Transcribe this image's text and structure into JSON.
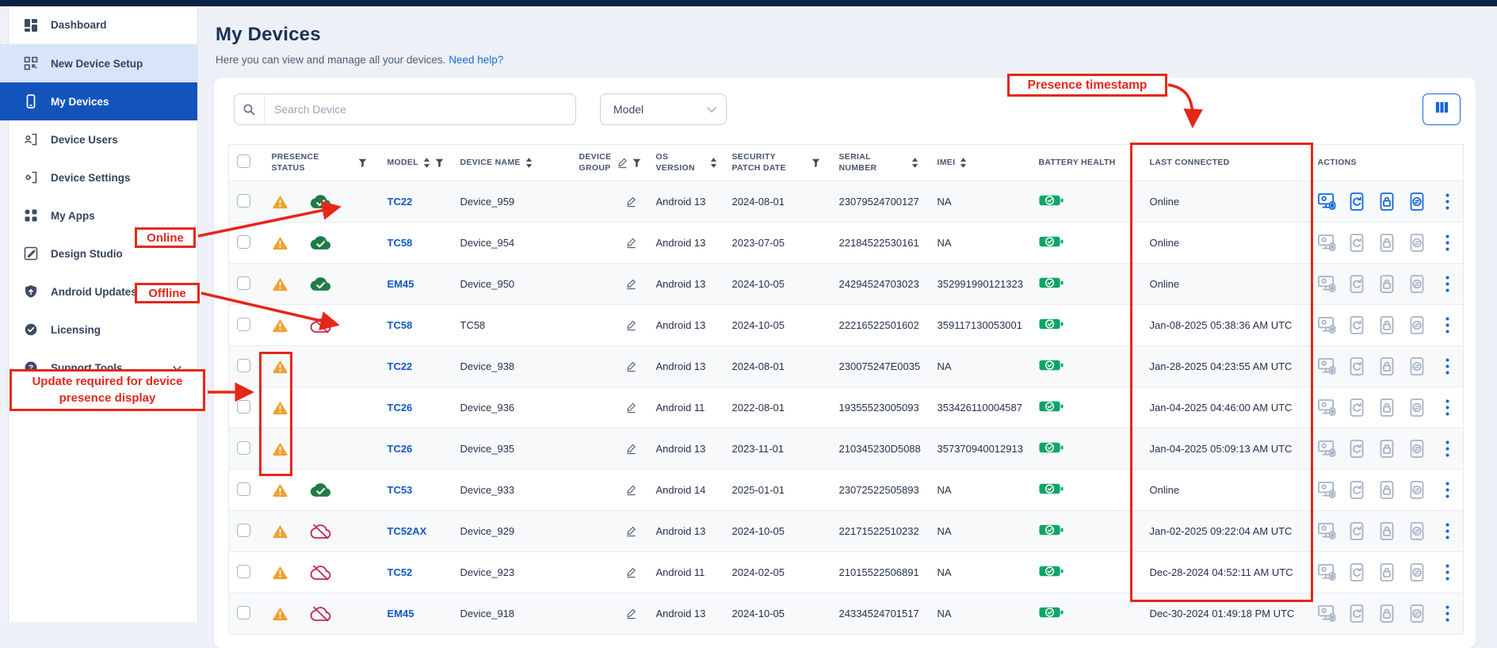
{
  "colors": {
    "topbar": "#0c2244",
    "active_nav": "#1254bc",
    "highlight_nav": "#d8e5f8",
    "link_blue": "#1769d6",
    "model_link": "#1457c0",
    "warning_orange": "#f0a030",
    "online_green": "#1d7d45",
    "battery_green": "#0da566",
    "offline_red": "#c22a4a",
    "annotation_red": "#e52718",
    "action_active": "#1565d8",
    "action_idle": "#a7b2c6"
  },
  "sidebar": {
    "items": [
      {
        "label": "Dashboard",
        "icon": "dashboard-icon",
        "state": "first"
      },
      {
        "label": "New Device Setup",
        "icon": "qr-setup-icon",
        "state": "highlight"
      },
      {
        "label": "My Devices",
        "icon": "phone-icon",
        "state": "active"
      },
      {
        "label": "Device Users",
        "icon": "device-users-icon",
        "state": ""
      },
      {
        "label": "Device Settings",
        "icon": "device-settings-icon",
        "state": ""
      },
      {
        "label": "My Apps",
        "icon": "apps-icon",
        "state": ""
      },
      {
        "label": "Design Studio",
        "icon": "design-studio-icon",
        "state": ""
      },
      {
        "label": "Android Updates",
        "icon": "shield-icon",
        "state": ""
      },
      {
        "label": "Licensing",
        "icon": "license-badge-icon",
        "state": ""
      },
      {
        "label": "Support Tools",
        "icon": "help-icon",
        "state": "",
        "chevron": true
      }
    ]
  },
  "header": {
    "title": "My Devices",
    "subtitle": "Here you can view and manage all your devices.",
    "help_link": "Need help?"
  },
  "toolbar": {
    "search_placeholder": "Search Device",
    "model_filter_label": "Model",
    "columns_button_icon": "columns-icon"
  },
  "table": {
    "columns": [
      {
        "label": "PRESENCE STATUS",
        "filter": true
      },
      {
        "label": "MODEL",
        "sort": true,
        "filter": true
      },
      {
        "label": "DEVICE NAME",
        "sort": true
      },
      {
        "label": "DEVICE GROUP",
        "edit": true,
        "filter": true
      },
      {
        "label": "OS VERSION",
        "sort": true
      },
      {
        "label": "SECURITY PATCH DATE",
        "filter": true
      },
      {
        "label": "SERIAL NUMBER",
        "sort": true
      },
      {
        "label": "IMEI",
        "sort": true
      },
      {
        "label": "BATTERY HEALTH"
      },
      {
        "label": "LAST CONNECTED"
      },
      {
        "label": "ACTIONS"
      }
    ],
    "actions_icons": [
      "remote-access-icon",
      "reboot-device-icon",
      "lock-device-icon",
      "push-sync-icon",
      "more-options-icon"
    ],
    "rows": [
      {
        "warning": true,
        "presence": "online",
        "model": "TC22",
        "name": "Device_959",
        "os": "Android 13",
        "patch": "2024-08-01",
        "serial": "23079524700127",
        "imei": "NA",
        "battery": "good",
        "last": "Online",
        "actions_active": true
      },
      {
        "warning": true,
        "presence": "online",
        "model": "TC58",
        "name": "Device_954",
        "os": "Android 13",
        "patch": "2023-07-05",
        "serial": "22184522530161",
        "imei": "NA",
        "battery": "good",
        "last": "Online",
        "actions_active": false
      },
      {
        "warning": true,
        "presence": "online",
        "model": "EM45",
        "name": "Device_950",
        "os": "Android 13",
        "patch": "2024-10-05",
        "serial": "24294524703023",
        "imei": "352991990121323",
        "battery": "good",
        "last": "Online",
        "actions_active": false
      },
      {
        "warning": true,
        "presence": "offline",
        "model": "TC58",
        "name": "TC58",
        "os": "Android 13",
        "patch": "2024-10-05",
        "serial": "22216522501602",
        "imei": "359117130053001",
        "battery": "good",
        "last": "Jan-08-2025 05:38:36 AM UTC",
        "actions_active": false
      },
      {
        "warning": true,
        "presence": "none",
        "model": "TC22",
        "name": "Device_938",
        "os": "Android 13",
        "patch": "2024-08-01",
        "serial": "230075247E0035",
        "imei": "NA",
        "battery": "good",
        "last": "Jan-28-2025 04:23:55 AM UTC",
        "actions_active": false
      },
      {
        "warning": true,
        "presence": "none",
        "model": "TC26",
        "name": "Device_936",
        "os": "Android 11",
        "patch": "2022-08-01",
        "serial": "19355523005093",
        "imei": "353426110004587",
        "battery": "good",
        "last": "Jan-04-2025 04:46:00 AM UTC",
        "actions_active": false
      },
      {
        "warning": true,
        "presence": "none",
        "model": "TC26",
        "name": "Device_935",
        "os": "Android 13",
        "patch": "2023-11-01",
        "serial": "210345230D5088",
        "imei": "357370940012913",
        "battery": "good",
        "last": "Jan-04-2025 05:09:13 AM UTC",
        "actions_active": false
      },
      {
        "warning": true,
        "presence": "online",
        "model": "TC53",
        "name": "Device_933",
        "os": "Android 14",
        "patch": "2025-01-01",
        "serial": "23072522505893",
        "imei": "NA",
        "battery": "good",
        "last": "Online",
        "actions_active": false
      },
      {
        "warning": true,
        "presence": "offline",
        "model": "TC52AX",
        "name": "Device_929",
        "os": "Android 13",
        "patch": "2024-10-05",
        "serial": "22171522510232",
        "imei": "NA",
        "battery": "good",
        "last": "Jan-02-2025 09:22:04 AM UTC",
        "actions_active": false
      },
      {
        "warning": true,
        "presence": "offline",
        "model": "TC52",
        "name": "Device_923",
        "os": "Android 11",
        "patch": "2024-02-05",
        "serial": "21015522506891",
        "imei": "NA",
        "battery": "good",
        "last": "Dec-28-2024 04:52:11 AM UTC",
        "actions_active": false
      },
      {
        "warning": true,
        "presence": "offline",
        "model": "EM45",
        "name": "Device_918",
        "os": "Android 13",
        "patch": "2024-10-05",
        "serial": "24334524701517",
        "imei": "NA",
        "battery": "good",
        "last": "Dec-30-2024 01:49:18 PM UTC",
        "actions_active": false
      }
    ]
  },
  "annotations": {
    "presence_timestamp": "Presence timestamp",
    "online": "Online",
    "offline": "Offline",
    "update_required": "Update required for device presence display"
  }
}
